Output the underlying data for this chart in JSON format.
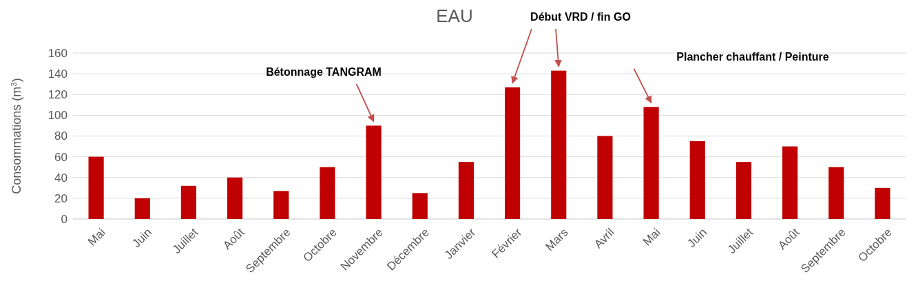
{
  "chart_data": {
    "type": "bar",
    "title": "EAU",
    "ylabel": "Consommations (m$^{3}$)",
    "categories": [
      "Mai",
      "Juin",
      "Juillet",
      "Août",
      "Septembre",
      "Octobre",
      "Novembre",
      "Décembre",
      "Janvier",
      "Février",
      "Mars",
      "Avril",
      "Mai",
      "Juin",
      "Juillet",
      "Août",
      "Septembre",
      "Octobre"
    ],
    "values": [
      60,
      20,
      32,
      40,
      27,
      50,
      90,
      25,
      55,
      127,
      143,
      80,
      108,
      75,
      55,
      70,
      50,
      30
    ],
    "color": "#c00000",
    "ylim": [
      0,
      160
    ],
    "yticks": [
      0,
      20,
      40,
      60,
      80,
      100,
      120,
      140,
      160
    ],
    "grid": "y",
    "annotations": [
      "Bétonnage TANGRAM",
      "Début VRD / fin GO",
      "Plancher chauffant / Peinture"
    ]
  }
}
